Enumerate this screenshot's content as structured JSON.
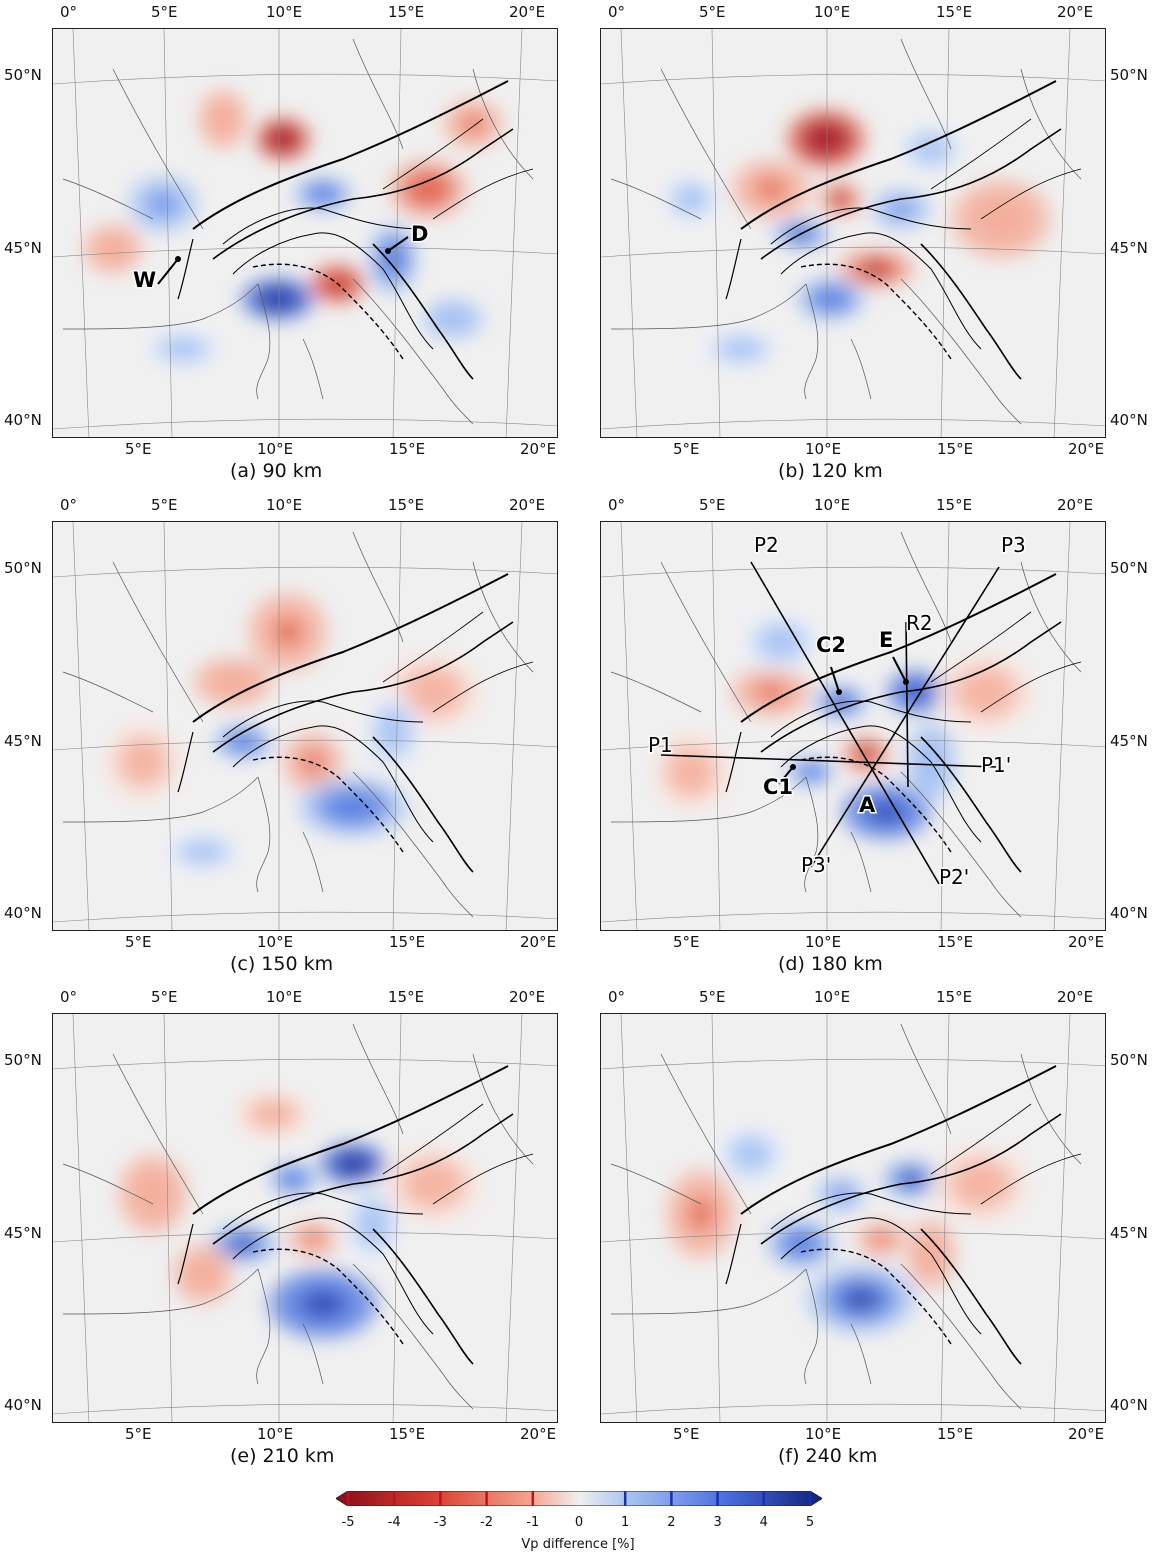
{
  "panels": [
    {
      "id": "a",
      "caption": "(a) 90 km",
      "annotations": [
        {
          "text": "W",
          "bold": true
        },
        {
          "text": "D",
          "bold": true
        }
      ]
    },
    {
      "id": "b",
      "caption": "(b) 120 km",
      "annotations": []
    },
    {
      "id": "c",
      "caption": "(c) 150 km",
      "annotations": []
    },
    {
      "id": "d",
      "caption": "(d) 180 km",
      "annotations": [
        {
          "text": "P2",
          "bold": false
        },
        {
          "text": "P3",
          "bold": false
        },
        {
          "text": "R2",
          "bold": false
        },
        {
          "text": "C2",
          "bold": true
        },
        {
          "text": "E",
          "bold": true
        },
        {
          "text": "P1",
          "bold": false
        },
        {
          "text": "P1'",
          "bold": false
        },
        {
          "text": "C1",
          "bold": true
        },
        {
          "text": "A",
          "bold": true
        },
        {
          "text": "P3'",
          "bold": false
        },
        {
          "text": "P2'",
          "bold": false
        }
      ]
    },
    {
      "id": "e",
      "caption": "(e) 210 km",
      "annotations": []
    },
    {
      "id": "f",
      "caption": "(f) 240 km",
      "annotations": []
    }
  ],
  "axes": {
    "top_lon": [
      "0°",
      "5°E",
      "10°E",
      "15°E",
      "20°E"
    ],
    "bottom_lon": [
      "5°E",
      "10°E",
      "15°E",
      "20°E"
    ],
    "lat": [
      "50°N",
      "45°N",
      "40°N"
    ]
  },
  "colorbar": {
    "title": "Vp difference [%]",
    "ticks": [
      "-5",
      "-4",
      "-3",
      "-2",
      "-1",
      "0",
      "1",
      "2",
      "3",
      "4",
      "5"
    ],
    "negative_color": "#b2182b",
    "neutral_color": "#f0f0f0",
    "positive_color": "#2c4fc4"
  }
}
